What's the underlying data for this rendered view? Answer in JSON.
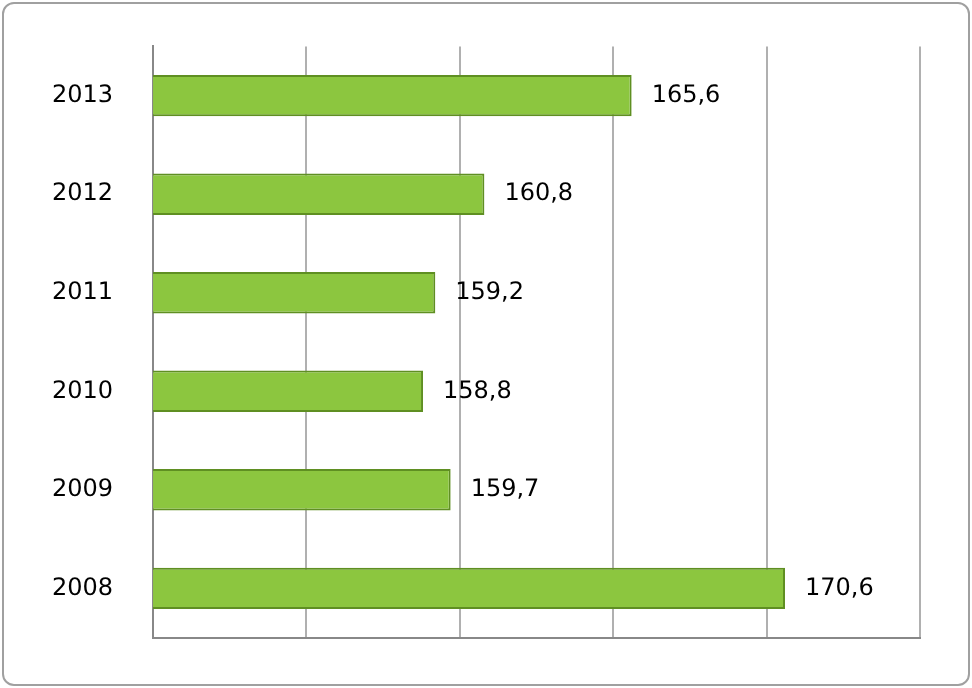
{
  "chart_data": {
    "type": "bar",
    "orientation": "horizontal",
    "categories": [
      "2013",
      "2012",
      "2011",
      "2010",
      "2009",
      "2008"
    ],
    "values": [
      165.6,
      160.8,
      159.2,
      158.8,
      159.7,
      170.6
    ],
    "value_labels": [
      "165,6",
      "160,8",
      "159,2",
      "158,8",
      "159,7",
      "170,6"
    ],
    "color": "#8cc63f",
    "xlim": [
      150,
      175
    ],
    "xticks": [
      {
        "value": 150,
        "label": null
      },
      {
        "value": 155,
        "label": null
      },
      {
        "value": 160,
        "label": null
      },
      {
        "value": 165,
        "label": null
      },
      {
        "value": 170,
        "label": null
      },
      {
        "value": 175,
        "label": null
      }
    ],
    "tick_labels": "y",
    "grid": "x",
    "legend": false
  }
}
